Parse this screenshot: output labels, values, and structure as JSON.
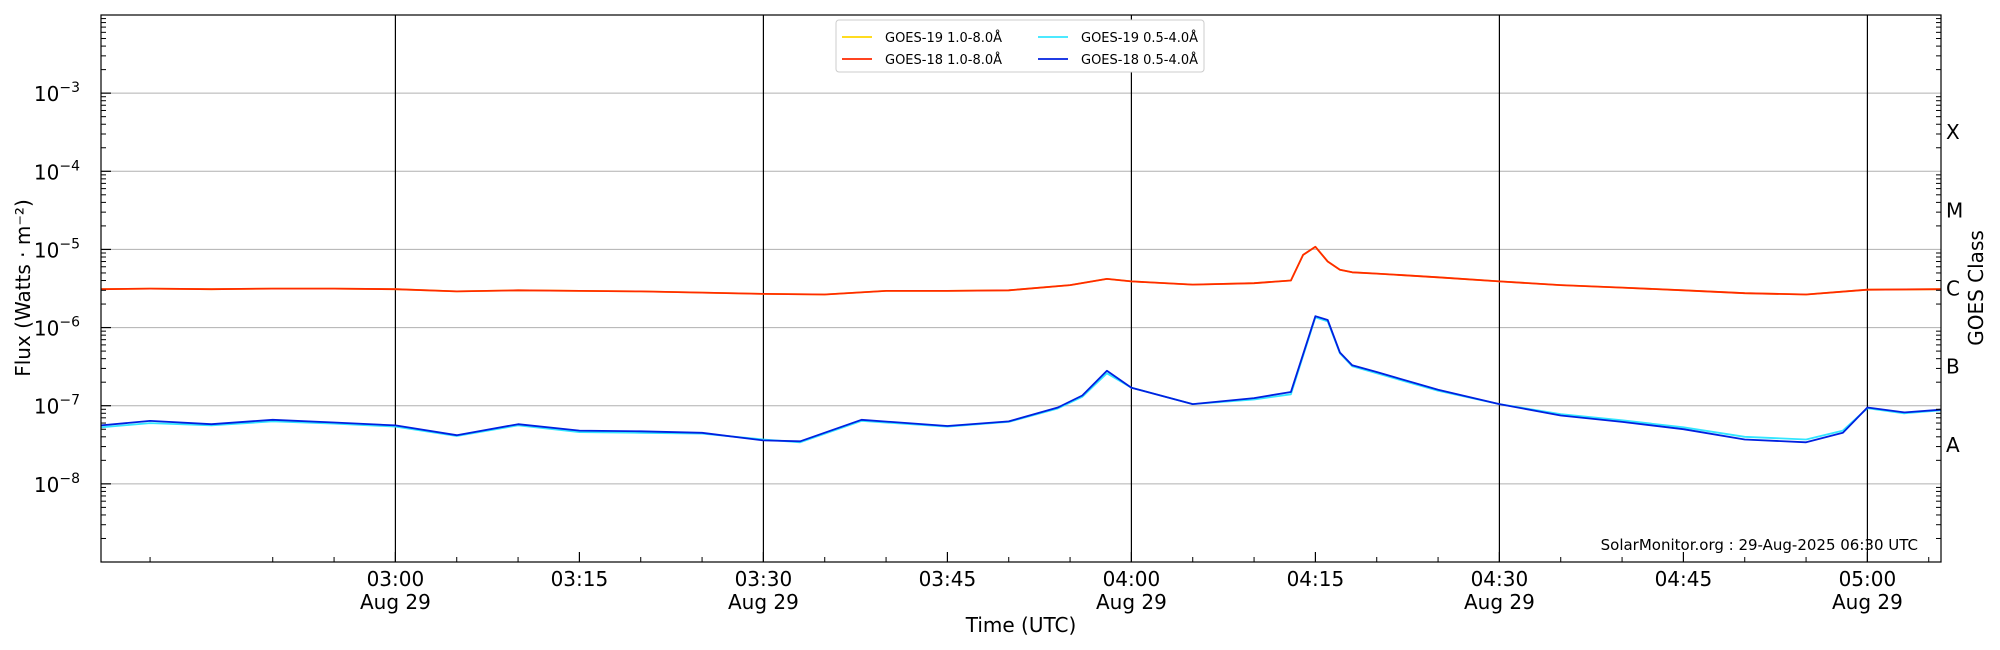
{
  "chart_data": {
    "type": "line",
    "xlabel": "Time (UTC)",
    "ylabel": "Flux (Watts · m⁻²)",
    "right_label": "GOES Class",
    "yscale": "log",
    "xlim": [
      "02:36",
      "05:06"
    ],
    "ylim": [
      1e-09,
      0.01
    ],
    "grid": "horizontal",
    "legend_position": "top-center",
    "watermark": "SolarMonitor.org : 29-Aug-2025 06:30 UTC",
    "x_ticks": [
      {
        "time": "03:00",
        "label": "03:00",
        "sub": "Aug 29"
      },
      {
        "time": "03:15",
        "label": "03:15",
        "sub": ""
      },
      {
        "time": "03:30",
        "label": "03:30",
        "sub": "Aug 29"
      },
      {
        "time": "03:45",
        "label": "03:45",
        "sub": ""
      },
      {
        "time": "04:00",
        "label": "04:00",
        "sub": "Aug 29"
      },
      {
        "time": "04:15",
        "label": "04:15",
        "sub": ""
      },
      {
        "time": "04:30",
        "label": "04:30",
        "sub": "Aug 29"
      },
      {
        "time": "04:45",
        "label": "04:45",
        "sub": ""
      },
      {
        "time": "05:00",
        "label": "05:00",
        "sub": "Aug 29"
      }
    ],
    "vertical_lines": [
      "03:00",
      "03:30",
      "04:00",
      "04:30",
      "05:00"
    ],
    "y_ticks": [
      {
        "value": 1e-08,
        "base": "10",
        "exp": "−8"
      },
      {
        "value": 1e-07,
        "base": "10",
        "exp": "−7"
      },
      {
        "value": 1e-06,
        "base": "10",
        "exp": "−6"
      },
      {
        "value": 1e-05,
        "base": "10",
        "exp": "−5"
      },
      {
        "value": 0.0001,
        "base": "10",
        "exp": "−4"
      },
      {
        "value": 0.001,
        "base": "10",
        "exp": "−3"
      }
    ],
    "class_labels": [
      {
        "value": 3.16e-08,
        "label": "A"
      },
      {
        "value": 3.16e-07,
        "label": "B"
      },
      {
        "value": 3.16e-06,
        "label": "C"
      },
      {
        "value": 3.16e-05,
        "label": "M"
      },
      {
        "value": 0.000316,
        "label": "X"
      }
    ],
    "legend": [
      {
        "name": "GOES-19 1.0-8.0Å",
        "color": "#ffd700"
      },
      {
        "name": "GOES-18 1.0-8.0Å",
        "color": "#ff2a00"
      },
      {
        "name": "GOES-19 0.5-4.0Å",
        "color": "#33e6ff"
      },
      {
        "name": "GOES-18 0.5-4.0Å",
        "color": "#0020e0"
      }
    ],
    "series": [
      {
        "name": "GOES-19 1.0-8.0Å",
        "color": "#ffd700",
        "x": [
          "02:36",
          "02:40",
          "02:45",
          "02:50",
          "02:55",
          "03:00",
          "03:05",
          "03:10",
          "03:15",
          "03:20",
          "03:25",
          "03:30",
          "03:35",
          "03:40",
          "03:45",
          "03:50",
          "03:55",
          "03:58",
          "04:00",
          "04:05",
          "04:10",
          "04:13",
          "04:14",
          "04:15",
          "04:16",
          "04:17",
          "04:18",
          "04:20",
          "04:25",
          "04:30",
          "04:35",
          "04:40",
          "04:45",
          "04:50",
          "04:55",
          "05:00",
          "05:06"
        ],
        "y": [
          3.1e-06,
          3.15e-06,
          3.1e-06,
          3.15e-06,
          3.15e-06,
          3.1e-06,
          2.9e-06,
          3e-06,
          2.95e-06,
          2.9e-06,
          2.8e-06,
          2.7e-06,
          2.65e-06,
          2.95e-06,
          2.95e-06,
          3e-06,
          3.5e-06,
          4.2e-06,
          3.9e-06,
          3.55e-06,
          3.7e-06,
          4e-06,
          8.5e-06,
          1.08e-05,
          7e-06,
          5.5e-06,
          5.1e-06,
          4.9e-06,
          4.4e-06,
          3.9e-06,
          3.5e-06,
          3.25e-06,
          3e-06,
          2.75e-06,
          2.65e-06,
          3.05e-06,
          3.1e-06
        ]
      },
      {
        "name": "GOES-18 1.0-8.0Å",
        "color": "#ff2a00",
        "x": [
          "02:36",
          "02:40",
          "02:45",
          "02:50",
          "02:55",
          "03:00",
          "03:05",
          "03:10",
          "03:15",
          "03:20",
          "03:25",
          "03:30",
          "03:35",
          "03:40",
          "03:45",
          "03:50",
          "03:55",
          "03:58",
          "04:00",
          "04:05",
          "04:10",
          "04:13",
          "04:14",
          "04:15",
          "04:16",
          "04:17",
          "04:18",
          "04:20",
          "04:25",
          "04:30",
          "04:35",
          "04:40",
          "04:45",
          "04:50",
          "04:55",
          "05:00",
          "05:06"
        ],
        "y": [
          3.1e-06,
          3.15e-06,
          3.1e-06,
          3.15e-06,
          3.15e-06,
          3.1e-06,
          2.9e-06,
          3e-06,
          2.95e-06,
          2.9e-06,
          2.8e-06,
          2.7e-06,
          2.65e-06,
          2.95e-06,
          2.95e-06,
          3e-06,
          3.5e-06,
          4.2e-06,
          3.9e-06,
          3.55e-06,
          3.7e-06,
          4e-06,
          8.5e-06,
          1.08e-05,
          7e-06,
          5.5e-06,
          5.1e-06,
          4.9e-06,
          4.4e-06,
          3.9e-06,
          3.5e-06,
          3.25e-06,
          3e-06,
          2.75e-06,
          2.65e-06,
          3.05e-06,
          3.1e-06
        ]
      },
      {
        "name": "GOES-19 0.5-4.0Å",
        "color": "#33e6ff",
        "x": [
          "02:36",
          "02:40",
          "02:45",
          "02:50",
          "02:55",
          "03:00",
          "03:05",
          "03:10",
          "03:15",
          "03:20",
          "03:25",
          "03:30",
          "03:33",
          "03:38",
          "03:45",
          "03:50",
          "03:54",
          "03:56",
          "03:58",
          "04:00",
          "04:05",
          "04:10",
          "04:13",
          "04:15",
          "04:16",
          "04:17",
          "04:18",
          "04:20",
          "04:25",
          "04:30",
          "04:35",
          "04:40",
          "04:45",
          "04:50",
          "04:55",
          "04:58",
          "05:00",
          "05:03",
          "05:06"
        ],
        "y": [
          5.3e-08,
          6e-08,
          5.6e-08,
          6.3e-08,
          5.9e-08,
          5.4e-08,
          4.1e-08,
          5.6e-08,
          4.6e-08,
          4.5e-08,
          4.4e-08,
          3.7e-08,
          3.4e-08,
          6.4e-08,
          5.4e-08,
          6.2e-08,
          9.2e-08,
          1.3e-07,
          2.6e-07,
          1.7e-07,
          1.05e-07,
          1.2e-07,
          1.4e-07,
          1.35e-06,
          1.2e-06,
          4.7e-07,
          3.2e-07,
          2.6e-07,
          1.55e-07,
          1.05e-07,
          7.8e-08,
          6.5e-08,
          5.3e-08,
          4e-08,
          3.7e-08,
          4.8e-08,
          9.3e-08,
          8e-08,
          8.7e-08
        ]
      },
      {
        "name": "GOES-18 0.5-4.0Å",
        "color": "#0020e0",
        "x": [
          "02:36",
          "02:40",
          "02:45",
          "02:50",
          "02:55",
          "03:00",
          "03:05",
          "03:10",
          "03:15",
          "03:20",
          "03:25",
          "03:30",
          "03:33",
          "03:38",
          "03:45",
          "03:50",
          "03:54",
          "03:56",
          "03:58",
          "04:00",
          "04:05",
          "04:10",
          "04:13",
          "04:15",
          "04:16",
          "04:17",
          "04:18",
          "04:20",
          "04:25",
          "04:30",
          "04:35",
          "04:40",
          "04:45",
          "04:50",
          "04:55",
          "04:58",
          "05:00",
          "05:03",
          "05:06"
        ],
        "y": [
          5.6e-08,
          6.4e-08,
          5.8e-08,
          6.6e-08,
          6.1e-08,
          5.6e-08,
          4.2e-08,
          5.8e-08,
          4.8e-08,
          4.7e-08,
          4.5e-08,
          3.6e-08,
          3.5e-08,
          6.6e-08,
          5.5e-08,
          6.3e-08,
          9.5e-08,
          1.35e-07,
          2.8e-07,
          1.7e-07,
          1.05e-07,
          1.25e-07,
          1.5e-07,
          1.4e-06,
          1.25e-06,
          4.8e-07,
          3.3e-07,
          2.7e-07,
          1.6e-07,
          1.05e-07,
          7.5e-08,
          6.2e-08,
          5e-08,
          3.7e-08,
          3.4e-08,
          4.5e-08,
          9.5e-08,
          8.2e-08,
          8.9e-08
        ]
      }
    ]
  }
}
